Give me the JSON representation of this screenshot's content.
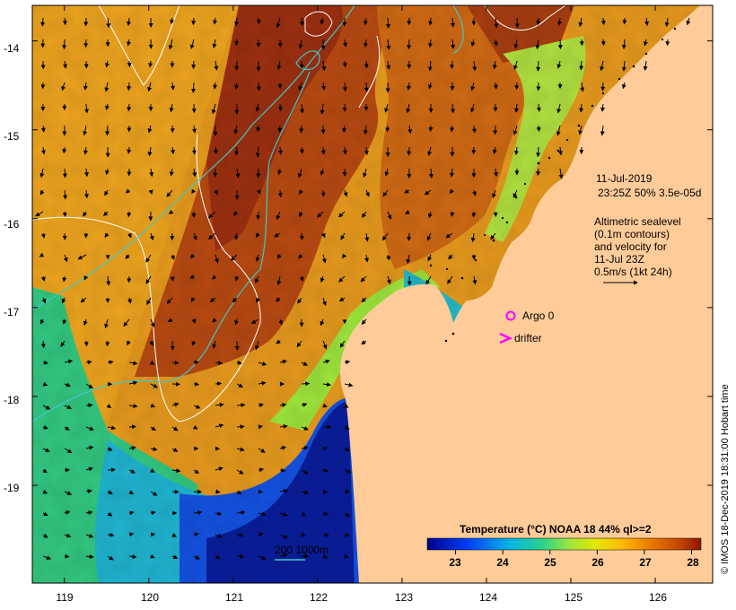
{
  "map": {
    "lon_ticks": [
      "119",
      "120",
      "121",
      "122",
      "123",
      "124",
      "125",
      "126"
    ],
    "lat_ticks": [
      "-14",
      "-15",
      "-16",
      "-17",
      "-18",
      "-19"
    ],
    "lon_range": [
      118.62,
      126.68
    ],
    "lat_range": [
      -20.1,
      -13.6
    ]
  },
  "annotation": {
    "date": "11-Jul-2019",
    "time_line": "23:25Z  50% 3.5e-05d",
    "sealevel_lines": [
      "Altimetric sealevel",
      "(0.1m contours)",
      "and velocity for",
      "11-Jul 23Z",
      "0.5m/s (1kt 24h)"
    ]
  },
  "markers": {
    "argo_label": "Argo 0",
    "drifter_label": "drifter",
    "argo_color": "#ff00ff",
    "drifter_color": "#ff00ff"
  },
  "bathymetry": {
    "label": "200  1000m",
    "color": "#40c8c8"
  },
  "legend": {
    "title": "Temperature (°C) NOAA 18 44% ql>=2",
    "ticks": [
      "23",
      "24",
      "25",
      "26",
      "27",
      "28"
    ],
    "range": [
      22.4,
      28.2
    ],
    "colors": [
      "#00008c",
      "#0040ff",
      "#00b4e6",
      "#28d28c",
      "#9ee63c",
      "#e6e600",
      "#ffb400",
      "#e67800",
      "#c84600",
      "#8c1400"
    ]
  },
  "land_color": "#ffcc99",
  "credit": "© IMOS 18-Dec-2019 18:31:00 Hobart time"
}
